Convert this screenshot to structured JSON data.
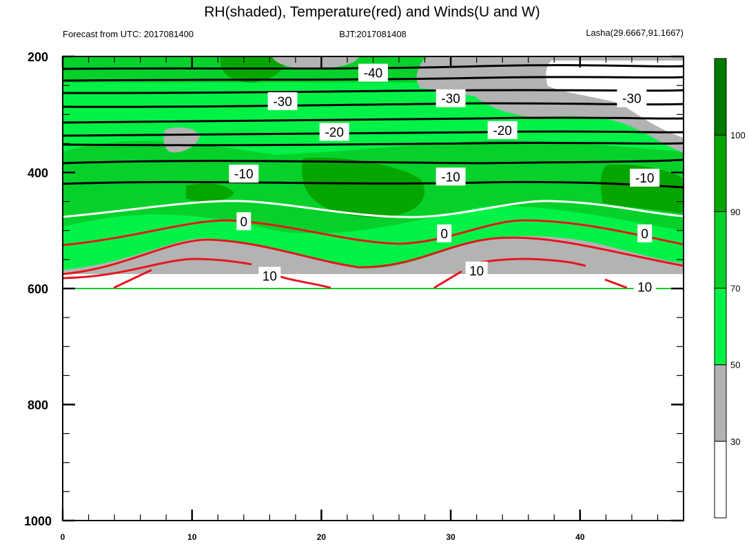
{
  "chart_data": {
    "type": "contour",
    "title": "RH(shaded), Temperature(red) and Winds(U and W)",
    "subtitle_left": "Forecast from UTC: 2017081400",
    "subtitle_center": "BJT:2017081408",
    "subtitle_right": "Lasha(29.6667,91.1667)",
    "x_ticks": [
      "0",
      "10",
      "20",
      "30",
      "40"
    ],
    "xlim": [
      0,
      48
    ],
    "y_ticks": [
      "200",
      "400",
      "600",
      "800",
      "1000"
    ],
    "ylim": [
      1000,
      200
    ],
    "colorbar_ticks": [
      "30",
      "50",
      "70",
      "90",
      "100"
    ],
    "colorbar_colors": [
      "#ffffff",
      "#b3b3b3",
      "#00f247",
      "#06d12a",
      "#05a600",
      "#007a00"
    ],
    "colors": {
      "temperature_above_zero": "#e8141e",
      "zero_isotherm": "#ffffff",
      "isotherm": "#000000"
    },
    "isotherm_labels": [
      {
        "text": "-40",
        "x": 24.0,
        "y": 228
      },
      {
        "text": "-30",
        "x": 17.0,
        "y": 277
      },
      {
        "text": "-30",
        "x": 30.0,
        "y": 272
      },
      {
        "text": "-30",
        "x": 44.0,
        "y": 272
      },
      {
        "text": "-20",
        "x": 21.0,
        "y": 330
      },
      {
        "text": "-20",
        "x": 34.0,
        "y": 327
      },
      {
        "text": "-10",
        "x": 14.0,
        "y": 402
      },
      {
        "text": "-10",
        "x": 30.0,
        "y": 407
      },
      {
        "text": "-10",
        "x": 45.0,
        "y": 409
      },
      {
        "text": "0",
        "x": 14.0,
        "y": 484
      },
      {
        "text": "0",
        "x": 29.5,
        "y": 505
      },
      {
        "text": "0",
        "x": 45.0,
        "y": 505
      },
      {
        "text": "10",
        "x": 16.0,
        "y": 578
      },
      {
        "text": "10",
        "x": 32.0,
        "y": 569
      },
      {
        "text": "10",
        "x": 45.0,
        "y": 597
      }
    ]
  }
}
